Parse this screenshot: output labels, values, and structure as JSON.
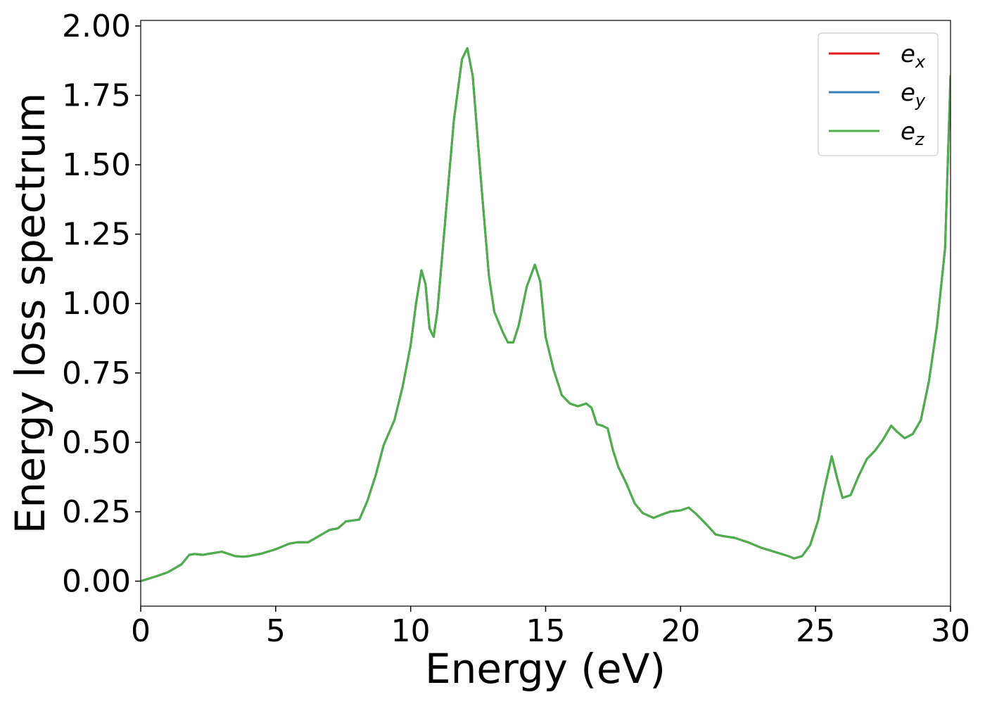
{
  "chart_data": {
    "type": "line",
    "title": "",
    "xlabel": "Energy (eV)",
    "ylabel": "Energy loss spectrum",
    "xlim": [
      0,
      30
    ],
    "ylim": [
      -0.09,
      2.02
    ],
    "x_ticks": [
      "0",
      "5",
      "10",
      "15",
      "20",
      "25",
      "30"
    ],
    "y_ticks": [
      "0.00",
      "0.25",
      "0.50",
      "0.75",
      "1.00",
      "1.25",
      "1.50",
      "1.75",
      "2.00"
    ],
    "grid": false,
    "legend_position": "top-right",
    "legend": [
      {
        "base": "e",
        "sub": "x",
        "color": "#e41a1c"
      },
      {
        "base": "e",
        "sub": "y",
        "color": "#377eb8"
      },
      {
        "base": "e",
        "sub": "z",
        "color": "#4daf4a"
      }
    ],
    "x": [
      0,
      0.5,
      1.0,
      1.5,
      1.8,
      2.0,
      2.3,
      2.6,
      3.0,
      3.2,
      3.5,
      3.8,
      4.0,
      4.5,
      5.0,
      5.5,
      5.8,
      6.2,
      6.6,
      7.0,
      7.3,
      7.6,
      7.8,
      8.1,
      8.4,
      8.7,
      9.0,
      9.4,
      9.7,
      10.0,
      10.2,
      10.4,
      10.55,
      10.7,
      10.85,
      11.0,
      11.3,
      11.6,
      11.9,
      12.1,
      12.3,
      12.6,
      12.9,
      13.1,
      13.4,
      13.6,
      13.8,
      14.0,
      14.3,
      14.6,
      14.8,
      15.0,
      15.3,
      15.6,
      15.9,
      16.2,
      16.5,
      16.7,
      16.9,
      17.1,
      17.3,
      17.5,
      17.7,
      18.0,
      18.3,
      18.6,
      19.0,
      19.3,
      19.6,
      20.0,
      20.3,
      20.6,
      21.0,
      21.3,
      21.6,
      22.0,
      22.5,
      23.0,
      23.5,
      24.0,
      24.2,
      24.5,
      24.8,
      25.1,
      25.3,
      25.6,
      25.8,
      26.0,
      26.3,
      26.6,
      26.9,
      27.2,
      27.5,
      27.8,
      28.0,
      28.3,
      28.6,
      28.9,
      29.2,
      29.5,
      29.8,
      30.0
    ],
    "series": [
      {
        "name": "e_x",
        "color": "#e41a1c",
        "values": [
          0.0,
          0.015,
          0.032,
          0.06,
          0.095,
          0.098,
          0.095,
          0.1,
          0.106,
          0.1,
          0.09,
          0.088,
          0.09,
          0.1,
          0.115,
          0.135,
          0.14,
          0.14,
          0.162,
          0.185,
          0.19,
          0.215,
          0.218,
          0.222,
          0.29,
          0.38,
          0.49,
          0.58,
          0.7,
          0.85,
          1.0,
          1.12,
          1.07,
          0.91,
          0.88,
          0.98,
          1.32,
          1.66,
          1.88,
          1.92,
          1.82,
          1.45,
          1.1,
          0.97,
          0.9,
          0.86,
          0.86,
          0.92,
          1.06,
          1.14,
          1.08,
          0.88,
          0.76,
          0.67,
          0.64,
          0.63,
          0.64,
          0.625,
          0.565,
          0.56,
          0.55,
          0.47,
          0.41,
          0.35,
          0.28,
          0.245,
          0.228,
          0.24,
          0.25,
          0.255,
          0.265,
          0.24,
          0.2,
          0.168,
          0.162,
          0.156,
          0.14,
          0.12,
          0.105,
          0.09,
          0.082,
          0.09,
          0.13,
          0.22,
          0.32,
          0.45,
          0.37,
          0.3,
          0.31,
          0.38,
          0.44,
          0.47,
          0.51,
          0.56,
          0.54,
          0.515,
          0.53,
          0.58,
          0.72,
          0.92,
          1.2,
          1.82
        ]
      },
      {
        "name": "e_y",
        "color": "#377eb8",
        "values": [
          0.0,
          0.015,
          0.032,
          0.06,
          0.095,
          0.098,
          0.095,
          0.1,
          0.106,
          0.1,
          0.09,
          0.088,
          0.09,
          0.1,
          0.115,
          0.135,
          0.14,
          0.14,
          0.162,
          0.185,
          0.19,
          0.215,
          0.218,
          0.222,
          0.29,
          0.38,
          0.49,
          0.58,
          0.7,
          0.85,
          1.0,
          1.12,
          1.07,
          0.91,
          0.88,
          0.98,
          1.32,
          1.66,
          1.88,
          1.92,
          1.82,
          1.45,
          1.1,
          0.97,
          0.9,
          0.86,
          0.86,
          0.92,
          1.06,
          1.14,
          1.08,
          0.88,
          0.76,
          0.67,
          0.64,
          0.63,
          0.64,
          0.625,
          0.565,
          0.56,
          0.55,
          0.47,
          0.41,
          0.35,
          0.28,
          0.245,
          0.228,
          0.24,
          0.25,
          0.255,
          0.265,
          0.24,
          0.2,
          0.168,
          0.162,
          0.156,
          0.14,
          0.12,
          0.105,
          0.09,
          0.082,
          0.09,
          0.13,
          0.22,
          0.32,
          0.45,
          0.37,
          0.3,
          0.31,
          0.38,
          0.44,
          0.47,
          0.51,
          0.56,
          0.54,
          0.515,
          0.53,
          0.58,
          0.72,
          0.92,
          1.2,
          1.82
        ]
      },
      {
        "name": "e_z",
        "color": "#4daf4a",
        "values": [
          0.0,
          0.015,
          0.032,
          0.06,
          0.095,
          0.098,
          0.095,
          0.1,
          0.106,
          0.1,
          0.09,
          0.088,
          0.09,
          0.1,
          0.115,
          0.135,
          0.14,
          0.14,
          0.162,
          0.185,
          0.19,
          0.215,
          0.218,
          0.222,
          0.29,
          0.38,
          0.49,
          0.58,
          0.7,
          0.85,
          1.0,
          1.12,
          1.07,
          0.91,
          0.88,
          0.98,
          1.32,
          1.66,
          1.88,
          1.92,
          1.82,
          1.45,
          1.1,
          0.97,
          0.9,
          0.86,
          0.86,
          0.92,
          1.06,
          1.14,
          1.08,
          0.88,
          0.76,
          0.67,
          0.64,
          0.63,
          0.64,
          0.625,
          0.565,
          0.56,
          0.55,
          0.47,
          0.41,
          0.35,
          0.28,
          0.245,
          0.228,
          0.24,
          0.25,
          0.255,
          0.265,
          0.24,
          0.2,
          0.168,
          0.162,
          0.156,
          0.14,
          0.12,
          0.105,
          0.09,
          0.082,
          0.09,
          0.13,
          0.22,
          0.32,
          0.45,
          0.37,
          0.3,
          0.31,
          0.38,
          0.44,
          0.47,
          0.51,
          0.56,
          0.54,
          0.515,
          0.53,
          0.58,
          0.72,
          0.92,
          1.2,
          1.82
        ]
      }
    ]
  }
}
